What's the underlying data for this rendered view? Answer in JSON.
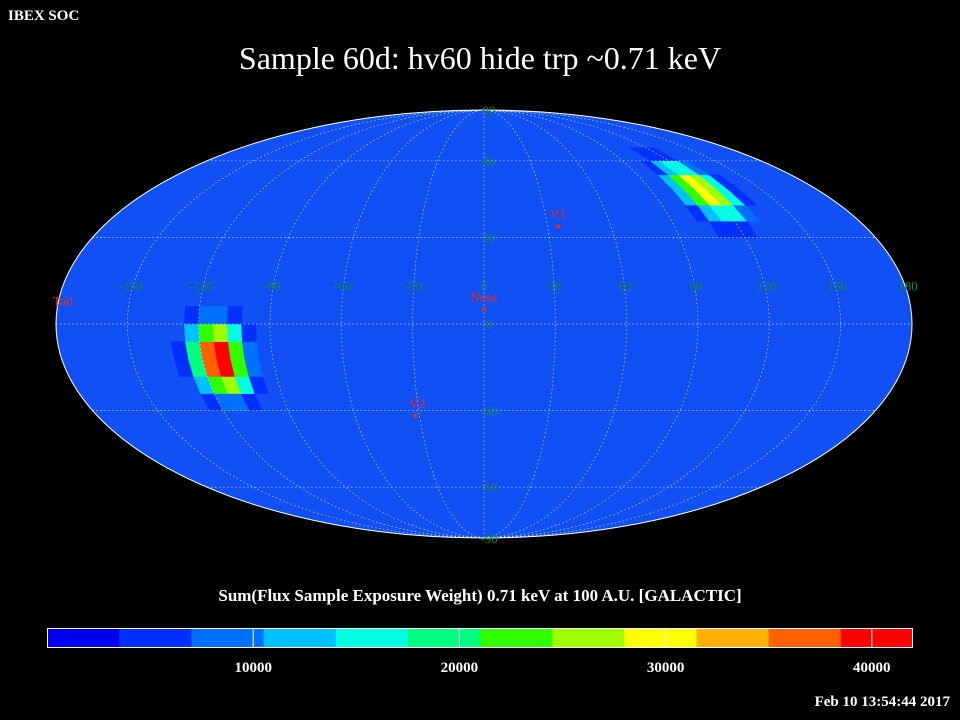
{
  "header": {
    "org_label": "IBEX SOC"
  },
  "title": "Sample 60d: hv60 hide trp ~0.71 keV",
  "colorbar": {
    "label": "Sum(Flux Sample Exposure Weight) 0.71 keV at 100 A.U. [GALACTIC]",
    "ticks": [
      "10000",
      "20000",
      "30000",
      "40000"
    ],
    "tick_values": [
      10000,
      20000,
      30000,
      40000
    ],
    "range": [
      0,
      42000
    ],
    "colors": [
      "#0000f0",
      "#0030ff",
      "#0070ff",
      "#00c0ff",
      "#00ffe0",
      "#00ff80",
      "#30ff00",
      "#a0ff00",
      "#ffff00",
      "#ffb000",
      "#ff6000",
      "#ff0000"
    ]
  },
  "timestamp": "Feb 10 13:54:44 2017",
  "map": {
    "projection": "mollweide",
    "background_color": "#1050f5",
    "longitude_labels": [
      "180",
      "150",
      "120",
      "90",
      "60",
      "30",
      "0",
      "-30",
      "-60",
      "-90",
      "-120",
      "-150"
    ],
    "longitude_values": [
      180,
      150,
      120,
      90,
      60,
      30,
      0,
      -30,
      -60,
      -90,
      -120,
      -150
    ],
    "latitude_labels": [
      "90",
      "60",
      "30",
      "0",
      "-30",
      "-60",
      "-90"
    ],
    "latitude_values": [
      90,
      60,
      30,
      0,
      -30,
      -60,
      -90
    ],
    "markers": [
      {
        "label": "V1",
        "lon": 35,
        "lat": 34
      },
      {
        "label": "Nose",
        "lon": 0,
        "lat": 5
      },
      {
        "label": "V2",
        "lon": -32,
        "lat": -32
      },
      {
        "label": "Tail",
        "lon": -180,
        "lat": 5
      }
    ],
    "hotspots": [
      {
        "lon": 118,
        "lat": 48,
        "peak": 32000,
        "spread_lon": 9,
        "spread_lat": 8
      },
      {
        "lon": -113,
        "lat": -12,
        "peak": 42000,
        "spread_lon": 8,
        "spread_lat": 9
      }
    ],
    "marker_color": "#ff2a00",
    "grid_label_color": "#138a38"
  }
}
